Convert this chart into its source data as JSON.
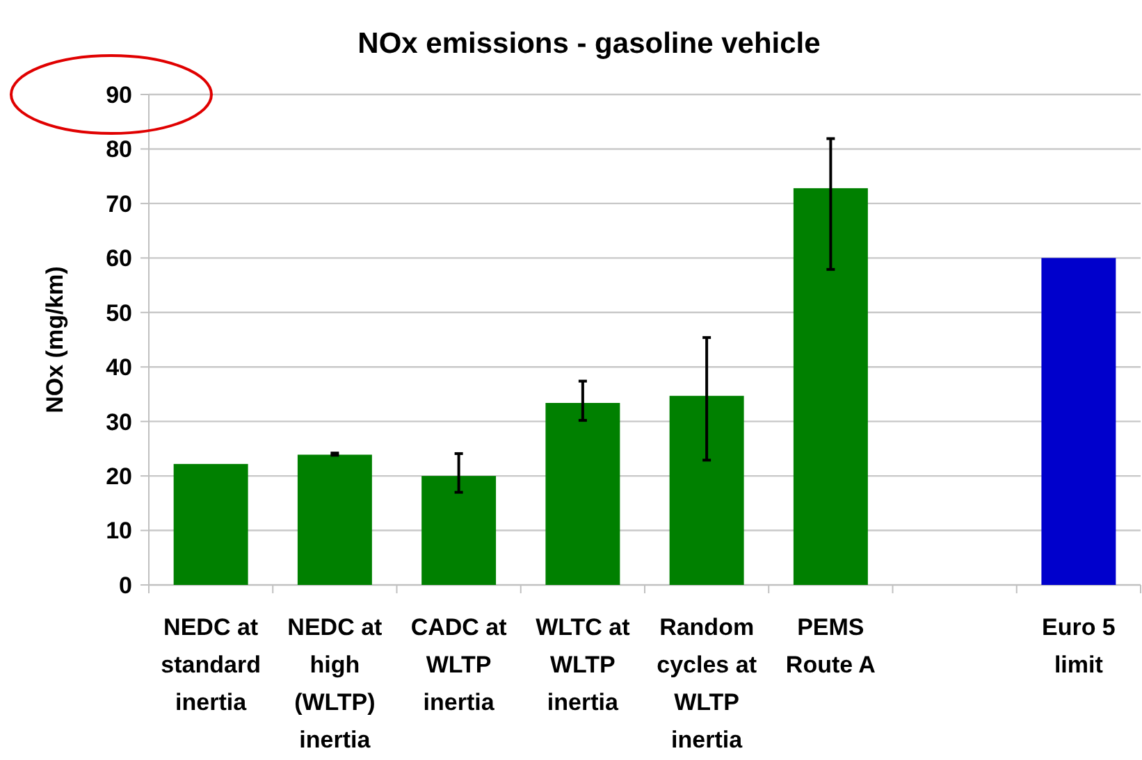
{
  "chart_data": {
    "type": "bar",
    "title": "NOx emissions - gasoline vehicle",
    "ylabel": "NOx (mg/km)",
    "categories": [
      "NEDC at standard inertia",
      "NEDC at high (WLTP) inertia",
      "CADC at WLTP inertia",
      "WLTC at WLTP inertia",
      "Random cycles at WLTP inertia",
      "PEMS Route A",
      null,
      "Euro 5 limit"
    ],
    "values": [
      22.2,
      23.9,
      20.0,
      33.4,
      34.7,
      72.8,
      null,
      60.0
    ],
    "colors": [
      "#008000",
      "#008000",
      "#008000",
      "#008000",
      "#008000",
      "#008000",
      null,
      "#0000cc"
    ],
    "errors": [
      null,
      [
        23.8,
        24.2
      ],
      [
        17.0,
        24.1
      ],
      [
        30.2,
        37.4
      ],
      [
        22.9,
        45.4
      ],
      [
        57.9,
        81.9
      ],
      null,
      null
    ],
    "ylim": [
      0,
      90
    ],
    "yticks": [
      0,
      10,
      20,
      30,
      40,
      50,
      60,
      70,
      80,
      90
    ],
    "grid": "y"
  }
}
